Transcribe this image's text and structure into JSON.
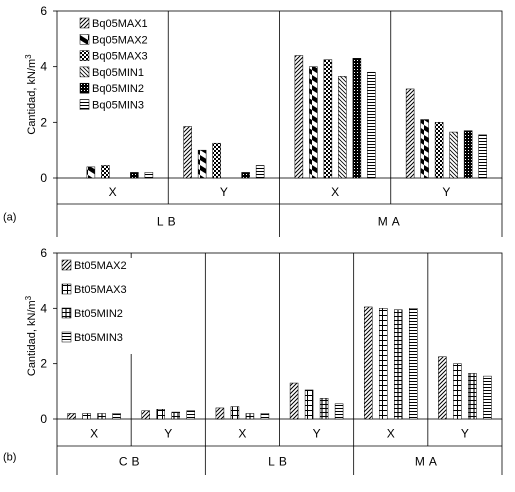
{
  "chart_data": [
    {
      "type": "bar",
      "panel_label": "(a)",
      "ylabel": "Cantidad, kN/m",
      "ylabel_sup": "3",
      "ylim": [
        0,
        6
      ],
      "yticks": [
        "0",
        "2",
        "4",
        "6"
      ],
      "legend": "top-left",
      "groups": [
        "LB",
        "MA"
      ],
      "categories": [
        "X",
        "Y",
        "X",
        "Y"
      ],
      "series": [
        {
          "name": "Bq05MAX1",
          "pattern": "diag-fwd",
          "values": [
            0.0,
            1.85,
            4.4,
            3.2
          ]
        },
        {
          "name": "Bq05MAX2",
          "pattern": "bowtie",
          "values": [
            0.4,
            1.0,
            4.0,
            2.1
          ]
        },
        {
          "name": "Bq05MAX3",
          "pattern": "checker",
          "values": [
            0.45,
            1.25,
            4.25,
            2.0
          ]
        },
        {
          "name": "Bq05MIN1",
          "pattern": "diag-back",
          "values": [
            0.0,
            0.0,
            3.65,
            1.65
          ]
        },
        {
          "name": "Bq05MIN2",
          "pattern": "dense-check",
          "values": [
            0.2,
            0.2,
            4.3,
            1.7
          ]
        },
        {
          "name": "Bq05MIN3",
          "pattern": "hstripe",
          "values": [
            0.2,
            0.45,
            3.8,
            1.55
          ]
        }
      ]
    },
    {
      "type": "bar",
      "panel_label": "(b)",
      "ylabel": "Cantidad, kN/m",
      "ylabel_sup": "3",
      "ylim": [
        0,
        6
      ],
      "yticks": [
        "0",
        "2",
        "4",
        "6"
      ],
      "legend": "top-left",
      "groups": [
        "CB",
        "LB",
        "MA"
      ],
      "categories": [
        "X",
        "Y",
        "X",
        "Y",
        "X",
        "Y"
      ],
      "series": [
        {
          "name": "Bt05MAX2",
          "pattern": "diag-fwd",
          "values": [
            0.2,
            0.3,
            0.4,
            1.3,
            4.05,
            2.25
          ]
        },
        {
          "name": "Bt05MAX3",
          "pattern": "grid",
          "values": [
            0.2,
            0.35,
            0.45,
            1.05,
            4.0,
            2.0
          ]
        },
        {
          "name": "Bt05MIN2",
          "pattern": "grid-dense",
          "values": [
            0.2,
            0.25,
            0.2,
            0.75,
            3.95,
            1.65
          ]
        },
        {
          "name": "Bt05MIN3",
          "pattern": "hstripe",
          "values": [
            0.2,
            0.3,
            0.2,
            0.55,
            4.0,
            1.55
          ]
        }
      ]
    }
  ]
}
